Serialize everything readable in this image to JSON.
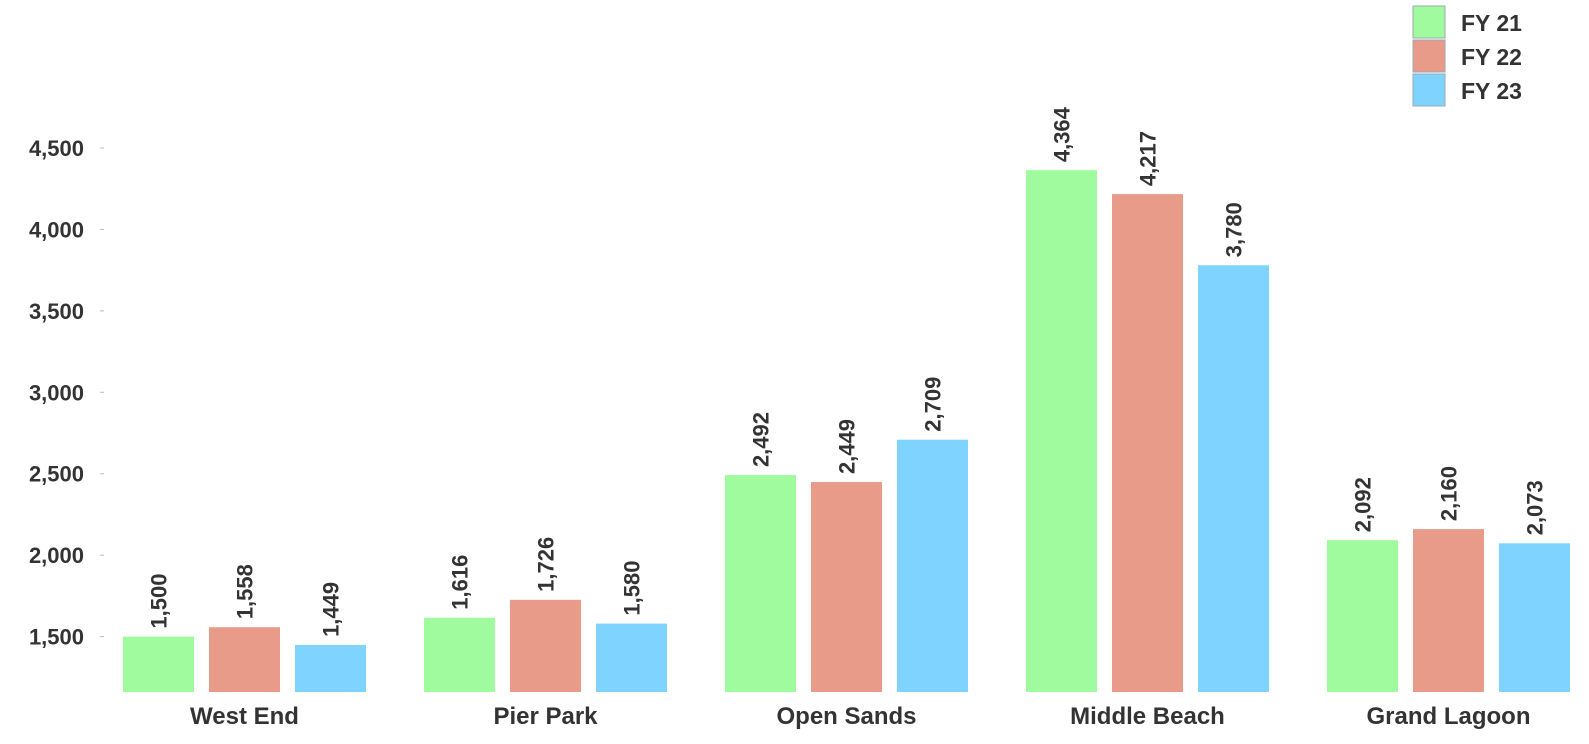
{
  "chart_data": {
    "type": "bar",
    "categories": [
      "West End",
      "Pier Park",
      "Open Sands",
      "Middle Beach",
      "Grand Lagoon"
    ],
    "series": [
      {
        "name": "FY 21",
        "color": "#a0fb9e",
        "values": [
          1500,
          1616,
          2492,
          4364,
          2092
        ]
      },
      {
        "name": "FY 22",
        "color": "#e89b89",
        "values": [
          1558,
          1726,
          2449,
          4217,
          2160
        ]
      },
      {
        "name": "FY 23",
        "color": "#7fd3ff",
        "values": [
          1449,
          1580,
          2709,
          3780,
          2073
        ]
      }
    ],
    "value_labels": [
      [
        "1,500",
        "1,616",
        "2,492",
        "4,364",
        "2,092"
      ],
      [
        "1,558",
        "1,726",
        "2,449",
        "4,217",
        "2,160"
      ],
      [
        "1,449",
        "1,580",
        "2,709",
        "3,780",
        "2,073"
      ]
    ],
    "y_ticks": [
      1500,
      2000,
      2500,
      3000,
      3500,
      4000,
      4500
    ],
    "y_tick_labels": [
      "1,500",
      "2,000",
      "2,500",
      "3,000",
      "3,500",
      "4,000",
      "4,500"
    ],
    "ylim": [
      1160,
      4500
    ],
    "title": "",
    "xlabel": "",
    "ylabel": "",
    "grid": false,
    "legend_position": "top-right"
  }
}
